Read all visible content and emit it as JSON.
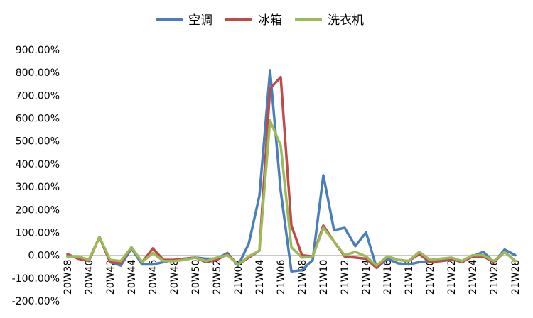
{
  "chart_data": {
    "type": "line",
    "x": [
      "20W38",
      "20W39",
      "20W40",
      "20W41",
      "20W42",
      "20W43",
      "20W44",
      "20W45",
      "20W46",
      "20W47",
      "20W48",
      "20W49",
      "20W50",
      "20W51",
      "20W52",
      "20W53",
      "21W02",
      "21W03",
      "21W04",
      "21W05",
      "21W06",
      "21W07",
      "21W08",
      "21W09",
      "21W10",
      "21W11",
      "21W12",
      "21W13",
      "21W14",
      "21W15",
      "21W16",
      "21W17",
      "21W18",
      "21W19",
      "21W20",
      "21W21",
      "21W22",
      "21W23",
      "21W24",
      "21W25",
      "21W26",
      "21W27",
      "21W28"
    ],
    "xtick_labels": [
      "20W38",
      "20W40",
      "20W42",
      "20W44",
      "20W46",
      "20W48",
      "20W50",
      "20W52",
      "21W02",
      "21W04",
      "21W06",
      "21W08",
      "21W10",
      "21W12",
      "21W14",
      "21W16",
      "21W18",
      "21W20",
      "21W22",
      "21W24",
      "21W26",
      "21W28"
    ],
    "ylim": [
      -200,
      900
    ],
    "yticks": [
      -200,
      -100,
      0,
      100,
      200,
      300,
      400,
      500,
      600,
      700,
      800,
      900
    ],
    "ytick_labels": [
      "-200.00%",
      "-100.00%",
      "0.00%",
      "100.00%",
      "200.00%",
      "300.00%",
      "400.00%",
      "500.00%",
      "600.00%",
      "700.00%",
      "800.00%",
      "900.00%"
    ],
    "legend_position": "top-center",
    "grid": false,
    "series": [
      {
        "name": "空调",
        "color": "#4A7EBB",
        "values": [
          -5,
          -10,
          -20,
          80,
          -30,
          -45,
          30,
          -40,
          -40,
          -30,
          -20,
          -15,
          -10,
          -15,
          -15,
          10,
          -45,
          50,
          260,
          810,
          280,
          -70,
          -65,
          -20,
          350,
          110,
          120,
          40,
          100,
          -55,
          -15,
          -35,
          -40,
          -30,
          -25,
          -25,
          -20,
          -25,
          -5,
          15,
          -30,
          25,
          0
        ]
      },
      {
        "name": "冰箱",
        "color": "#BE4B48",
        "values": [
          5,
          -15,
          -25,
          80,
          -30,
          -35,
          35,
          -30,
          30,
          -20,
          -20,
          -15,
          -10,
          -30,
          -20,
          5,
          -40,
          -10,
          20,
          730,
          780,
          130,
          0,
          -5,
          130,
          60,
          -5,
          -10,
          -15,
          -55,
          -5,
          -20,
          -25,
          5,
          -30,
          -25,
          -15,
          -30,
          -5,
          -5,
          -30,
          15,
          -25
        ]
      },
      {
        "name": "洗衣机",
        "color": "#9BBB59",
        "values": [
          -5,
          -5,
          -20,
          80,
          -20,
          -25,
          35,
          -30,
          10,
          -25,
          -25,
          -20,
          -10,
          -25,
          -10,
          0,
          -40,
          -5,
          20,
          590,
          480,
          35,
          -10,
          -5,
          120,
          60,
          0,
          15,
          -5,
          -45,
          -5,
          -20,
          -25,
          15,
          -20,
          -15,
          -10,
          -25,
          0,
          0,
          -25,
          15,
          -25
        ]
      }
    ]
  }
}
